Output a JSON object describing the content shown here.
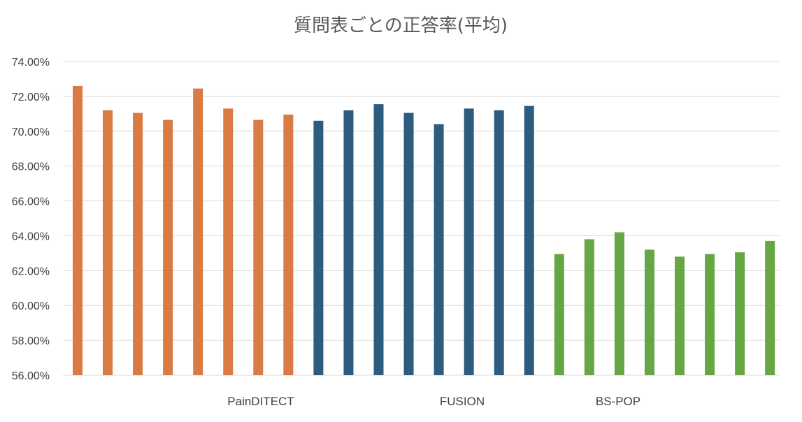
{
  "chart_data": {
    "type": "bar",
    "title": "質問表ごとの正答率(平均)",
    "ylim": [
      56,
      74
    ],
    "y_tick_step": 2,
    "y_tick_labels": [
      "56.00%",
      "58.00%",
      "60.00%",
      "62.00%",
      "64.00%",
      "66.00%",
      "68.00%",
      "70.00%",
      "72.00%",
      "74.00%"
    ],
    "grid": true,
    "legend": "none",
    "groups": [
      {
        "label": "PainDITECT",
        "color": "#D97B42",
        "values": [
          72.6,
          71.2,
          71.05,
          70.65,
          72.45,
          71.3,
          70.65,
          70.95
        ]
      },
      {
        "label": "FUSION",
        "color": "#2E5C7E",
        "values": [
          70.6,
          71.2,
          71.55,
          71.05,
          70.4,
          71.3,
          71.2,
          71.45
        ]
      },
      {
        "label": "BS-POP",
        "color": "#66A644",
        "values": [
          62.95,
          63.8,
          64.2,
          63.2,
          62.8,
          62.95,
          63.05,
          63.7
        ]
      }
    ]
  }
}
